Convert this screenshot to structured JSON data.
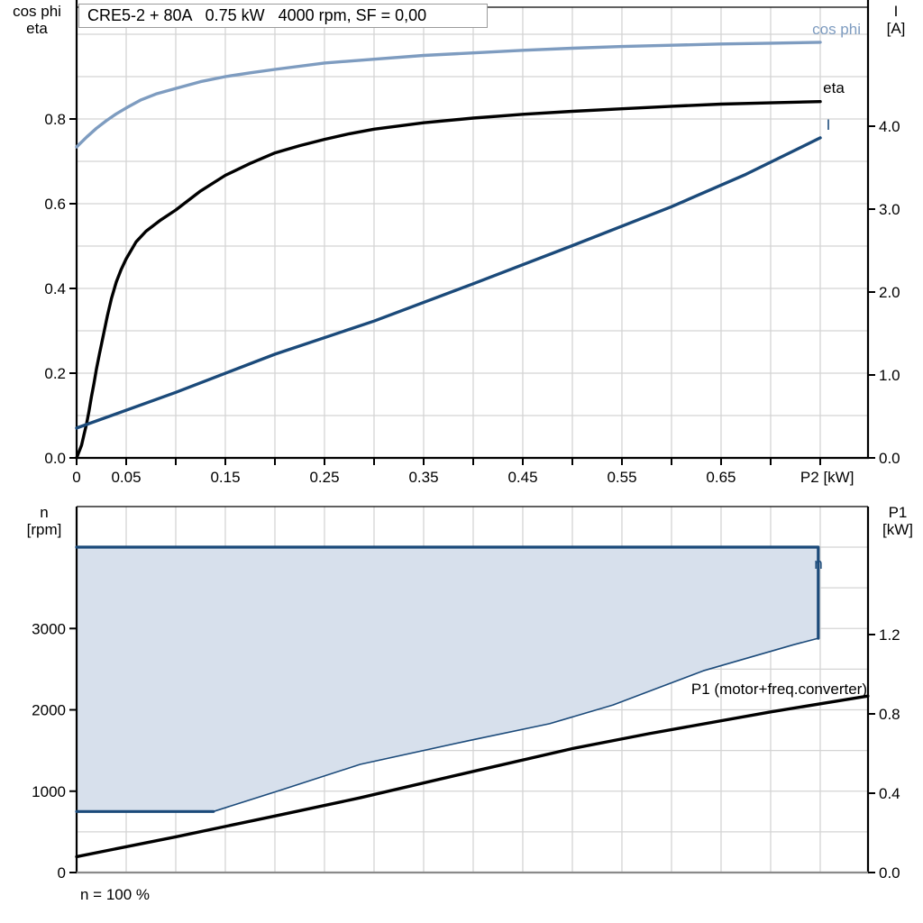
{
  "colors": {
    "cos_phi_blue": "#7E9CC0",
    "dark_blue": "#1B4A7A",
    "black": "#000000",
    "area_fill": "#D7E0EC",
    "grid": "#D4D4D4",
    "axis_gray": "#8A8A8A",
    "box_border": "#9B9B9B"
  },
  "chart_data": [
    {
      "type": "line",
      "title": "CRE5-2 + 80A   0.75 kW   4000 rpm, SF = 0,00",
      "x_axis": {
        "min": 0,
        "max": 0.7982,
        "tick_step": 0.05,
        "grid_step": 0.05,
        "labeled": [
          [
            "0",
            0
          ],
          [
            "0.05",
            0.05
          ],
          [
            "0.15",
            0.15
          ],
          [
            "0.25",
            0.25
          ],
          [
            "0.35",
            0.35
          ],
          [
            "0.45",
            0.45
          ],
          [
            "0.55",
            0.55
          ],
          [
            "0.65",
            0.65
          ]
        ],
        "title": "P2 [kW]",
        "title_pos": 0.757
      },
      "y_left": {
        "title_lines": [
          "cos phi",
          "eta"
        ],
        "min": 0,
        "max": 1.0638,
        "grid_step": 0.1,
        "ticks": [
          [
            "0.0",
            0
          ],
          [
            "0.2",
            0.2
          ],
          [
            "0.4",
            0.4
          ],
          [
            "0.6",
            0.6
          ],
          [
            "0.8",
            0.8
          ]
        ]
      },
      "y_right": {
        "title_lines": [
          "I",
          "[A]"
        ],
        "min": 0,
        "max": 5.435,
        "ticks": [
          [
            "0.0",
            0
          ],
          [
            "1.0",
            1
          ],
          [
            "2.0",
            2
          ],
          [
            "3.0",
            3
          ],
          [
            "4.0",
            4
          ]
        ]
      },
      "curve_labels": {
        "cos_phi": "cos phi",
        "eta": "eta",
        "current": "I"
      },
      "series": [
        {
          "name": "cos phi",
          "axis": "left",
          "color": "cos_phi_blue",
          "width": 3.4,
          "segments": [
            [
              [
                0,
                0.734
              ],
              [
                0.01,
                0.757
              ],
              [
                0.02,
                0.778
              ],
              [
                0.03,
                0.796
              ],
              [
                0.04,
                0.812
              ],
              [
                0.05,
                0.826
              ],
              [
                0.065,
                0.845
              ],
              [
                0.08,
                0.859
              ],
              [
                0.1,
                0.872
              ],
              [
                0.125,
                0.888
              ],
              [
                0.15,
                0.9
              ],
              [
                0.175,
                0.909
              ],
              [
                0.2,
                0.917
              ],
              [
                0.25,
                0.932
              ],
              [
                0.3,
                0.941
              ],
              [
                0.35,
                0.95
              ],
              [
                0.4,
                0.956
              ],
              [
                0.45,
                0.962
              ],
              [
                0.5,
                0.967
              ],
              [
                0.55,
                0.971
              ],
              [
                0.6,
                0.974
              ],
              [
                0.65,
                0.977
              ],
              [
                0.7,
                0.979
              ],
              [
                0.75,
                0.981
              ]
            ]
          ]
        },
        {
          "name": "eta",
          "axis": "left",
          "color": "black",
          "width": 3.4,
          "segments": [
            [
              [
                0,
                0
              ],
              [
                0.005,
                0.03
              ],
              [
                0.0075,
                0.055
              ],
              [
                0.01,
                0.08
              ],
              [
                0.0125,
                0.11
              ],
              [
                0.015,
                0.145
              ],
              [
                0.0175,
                0.175
              ],
              [
                0.02,
                0.21
              ],
              [
                0.023,
                0.245
              ],
              [
                0.027,
                0.29
              ],
              [
                0.031,
                0.335
              ],
              [
                0.035,
                0.375
              ],
              [
                0.04,
                0.415
              ],
              [
                0.045,
                0.445
              ],
              [
                0.05,
                0.47
              ],
              [
                0.06,
                0.51
              ],
              [
                0.07,
                0.535
              ],
              [
                0.085,
                0.562
              ],
              [
                0.1,
                0.585
              ],
              [
                0.125,
                0.63
              ],
              [
                0.15,
                0.667
              ],
              [
                0.175,
                0.695
              ],
              [
                0.2,
                0.72
              ],
              [
                0.225,
                0.737
              ],
              [
                0.25,
                0.752
              ],
              [
                0.275,
                0.765
              ],
              [
                0.3,
                0.776
              ],
              [
                0.35,
                0.791
              ],
              [
                0.4,
                0.802
              ],
              [
                0.45,
                0.811
              ],
              [
                0.5,
                0.818
              ],
              [
                0.55,
                0.824
              ],
              [
                0.6,
                0.83
              ],
              [
                0.65,
                0.835
              ],
              [
                0.7,
                0.838
              ],
              [
                0.75,
                0.841
              ]
            ]
          ]
        },
        {
          "name": "I",
          "axis": "right",
          "color": "dark_blue",
          "width": 3.4,
          "segments": [
            [
              [
                0,
                0.36
              ],
              [
                0.1,
                0.79
              ],
              [
                0.2,
                1.25
              ],
              [
                0.3,
                1.65
              ],
              [
                0.4,
                2.1
              ],
              [
                0.5,
                2.56
              ],
              [
                0.6,
                3.03
              ],
              [
                0.675,
                3.42
              ],
              [
                0.75,
                3.86
              ]
            ]
          ]
        }
      ]
    },
    {
      "type": "line+area",
      "x_axis": {
        "min": 0,
        "max": 0.7982,
        "grid_step": 0.05
      },
      "y_left": {
        "title_lines": [
          "n",
          "[rpm]"
        ],
        "min": 0,
        "max": 4499,
        "grid_step": 500,
        "ticks": [
          [
            "0",
            0
          ],
          [
            "1000",
            1000
          ],
          [
            "2000",
            2000
          ],
          [
            "3000",
            3000
          ]
        ]
      },
      "y_right": {
        "title_lines": [
          "P1",
          "[kW]"
        ],
        "min": 0,
        "max": 1.8455,
        "ticks": [
          [
            "0.0",
            0
          ],
          [
            "0.4",
            0.4
          ],
          [
            "0.8",
            0.8
          ],
          [
            "1.2",
            1.2
          ]
        ]
      },
      "curve_labels": {
        "n": "n",
        "p1": "P1 (motor+freq.converter)"
      },
      "footnote": "n = 100 %",
      "area": {
        "name": "speed-duty-range",
        "fill": "area_fill",
        "points": [
          [
            0,
            4000
          ],
          [
            0.748,
            4000
          ],
          [
            0.748,
            2880
          ],
          [
            0.723,
            2800
          ],
          [
            0.632,
            2480
          ],
          [
            0.541,
            2060
          ],
          [
            0.477,
            1830
          ],
          [
            0.395,
            1620
          ],
          [
            0.286,
            1330
          ],
          [
            0.205,
            1010
          ],
          [
            0.138,
            750
          ],
          [
            0,
            750
          ]
        ]
      },
      "series": [
        {
          "name": "n",
          "axis": "left",
          "color": "dark_blue",
          "width": 3.2,
          "segments": [
            [
              [
                0,
                4000
              ],
              [
                0.748,
                4000
              ],
              [
                0.748,
                2880
              ]
            ],
            [
              [
                0,
                750
              ],
              [
                0.138,
                750
              ]
            ]
          ]
        },
        {
          "name": "n-lower-limit",
          "axis": "left",
          "color": "dark_blue",
          "width": 1.6,
          "segments": [
            [
              [
                0.138,
                750
              ],
              [
                0.205,
                1010
              ],
              [
                0.286,
                1330
              ],
              [
                0.395,
                1620
              ],
              [
                0.477,
                1830
              ],
              [
                0.541,
                2060
              ],
              [
                0.632,
                2480
              ],
              [
                0.723,
                2800
              ],
              [
                0.748,
                2880
              ]
            ]
          ]
        },
        {
          "name": "P1 (motor+freq.converter)",
          "axis": "right",
          "color": "black",
          "width": 3.4,
          "segments": [
            [
              [
                0,
                0.08
              ],
              [
                0.1,
                0.18
              ],
              [
                0.2,
                0.285
              ],
              [
                0.286,
                0.377
              ],
              [
                0.4,
                0.51
              ],
              [
                0.5,
                0.625
              ],
              [
                0.577,
                0.7
              ],
              [
                0.7,
                0.81
              ],
              [
                0.798,
                0.89
              ]
            ]
          ]
        }
      ]
    }
  ]
}
